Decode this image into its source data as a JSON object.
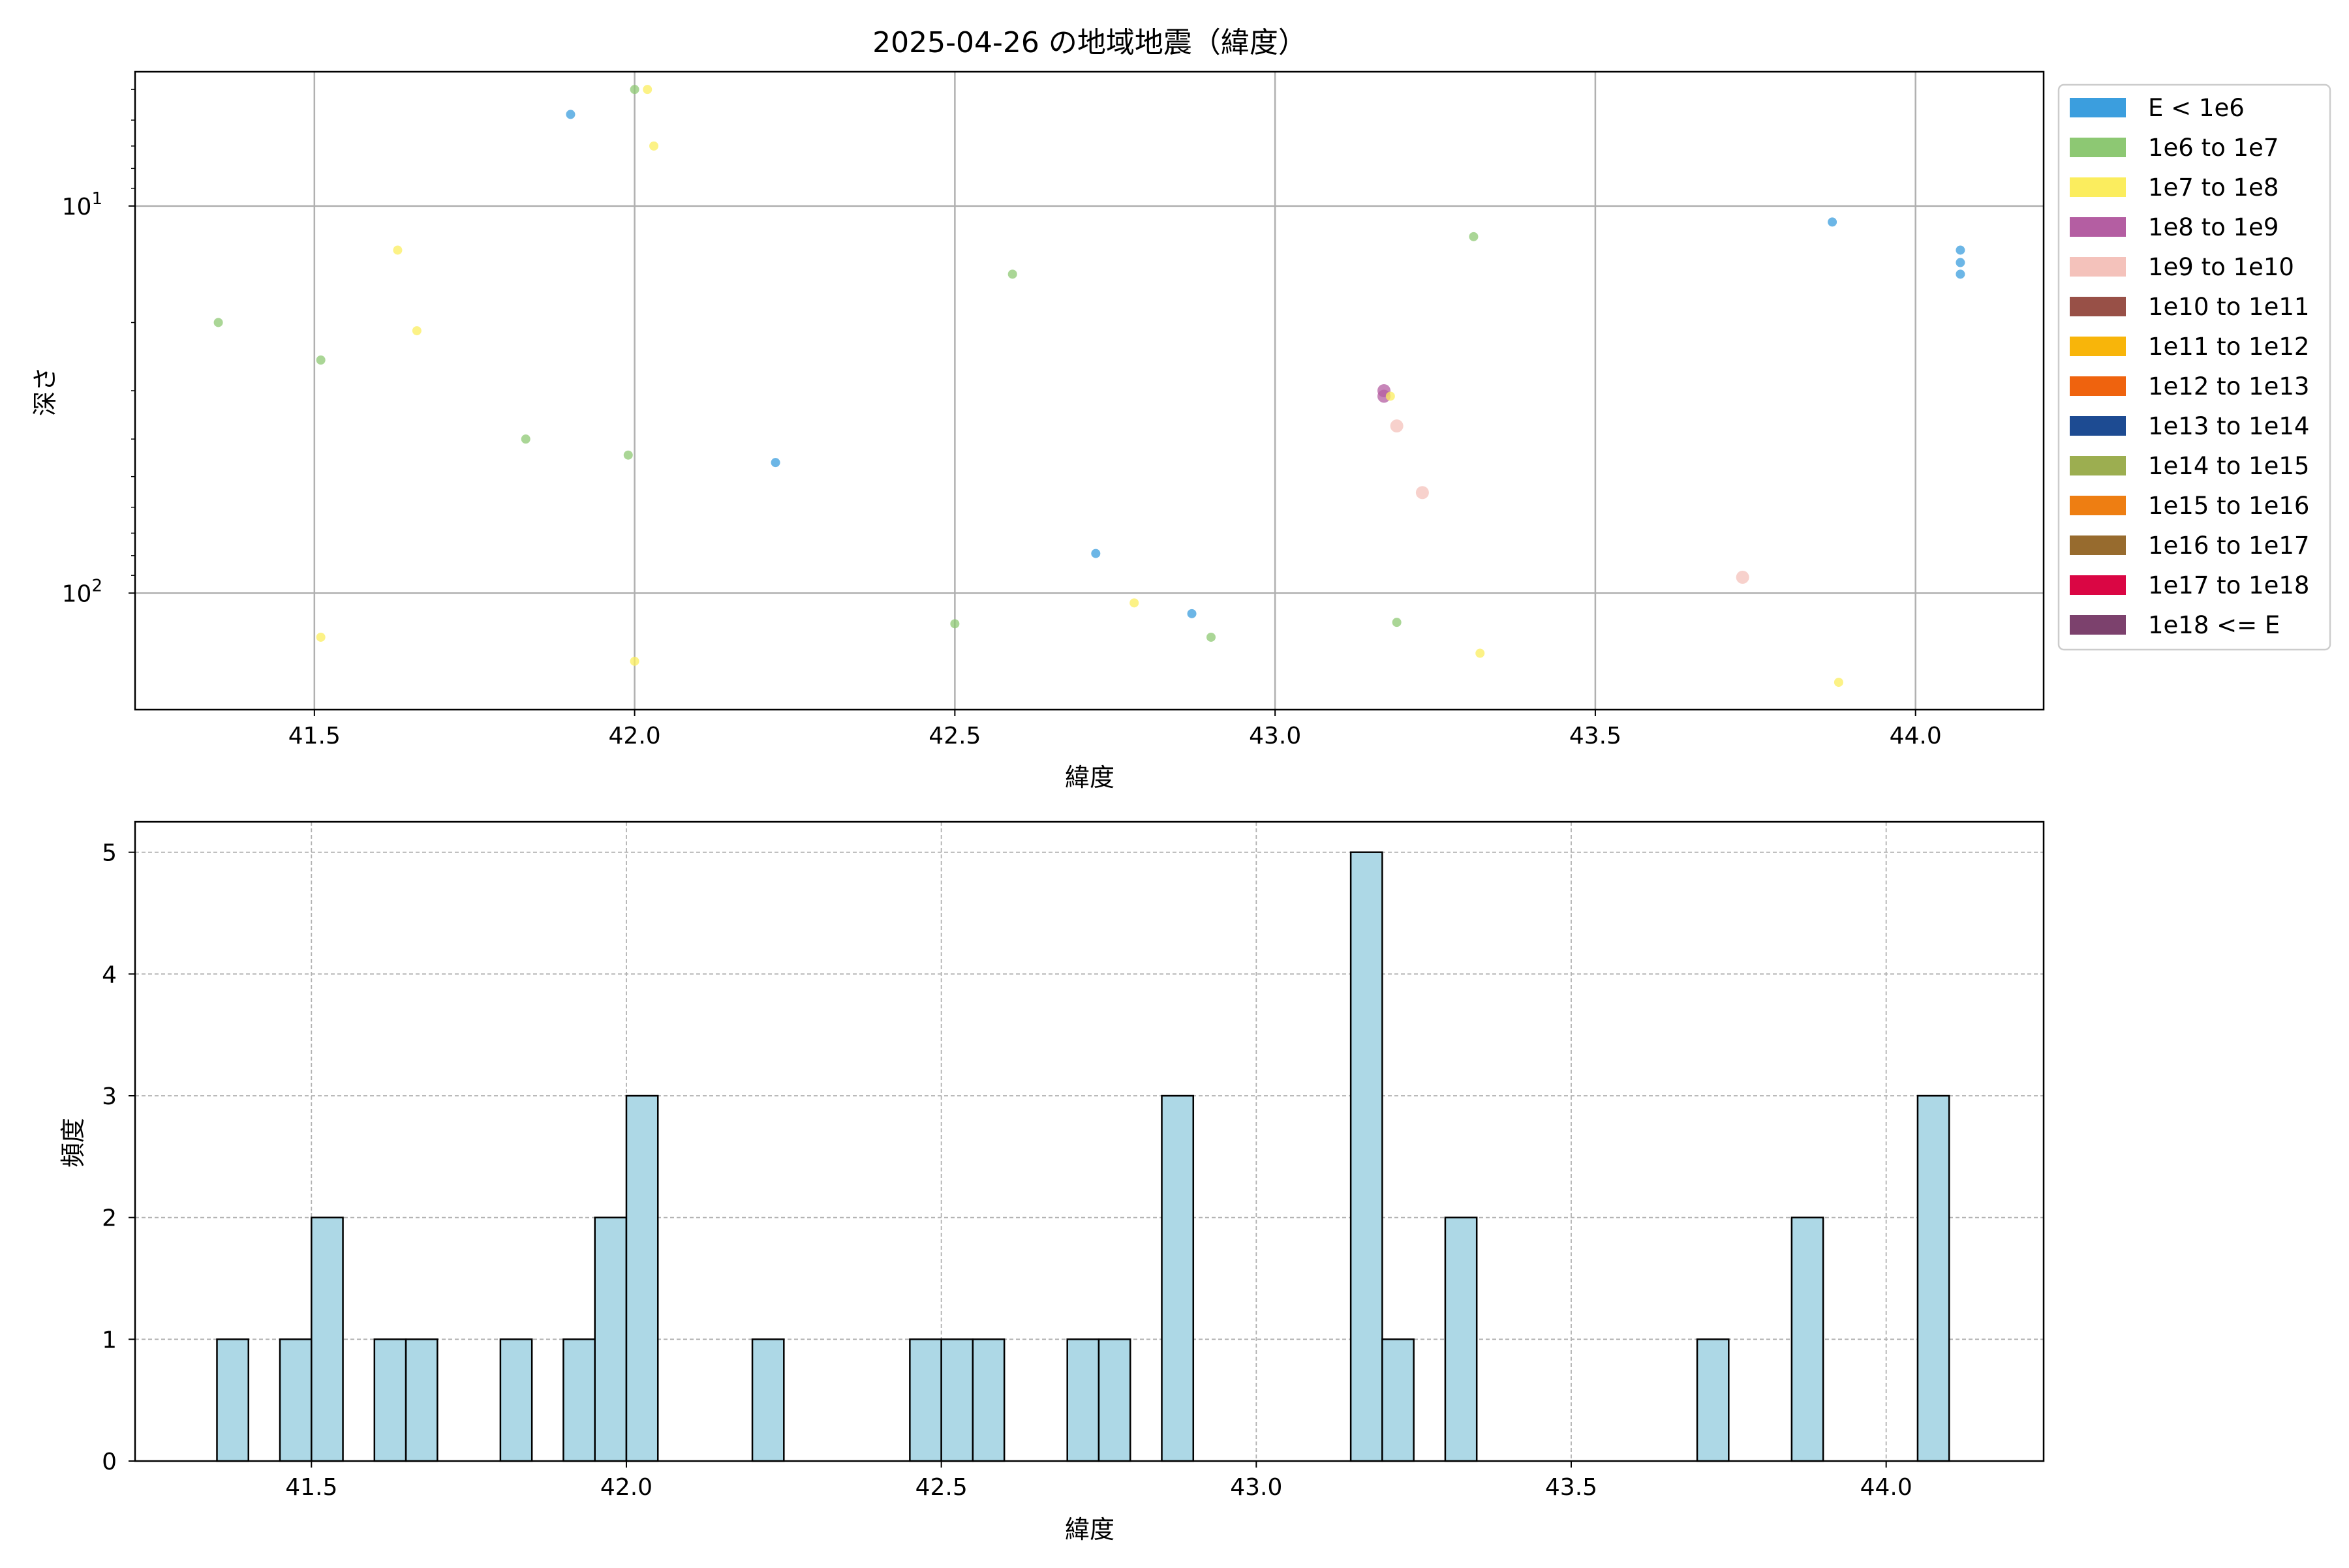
{
  "chart_data": [
    {
      "type": "scatter",
      "title": "2025-04-26 の地域地震（緯度）",
      "xlabel": "緯度",
      "ylabel": "深さ",
      "xlim": [
        41.22,
        44.2
      ],
      "ylim": [
        200,
        4.5
      ],
      "yscale": "log",
      "y_inverted": true,
      "x_ticks": [
        "41.5",
        "42.0",
        "42.5",
        "43.0",
        "43.5",
        "44.0"
      ],
      "y_ticks": [
        {
          "value": 10,
          "base": "10",
          "exp": "1"
        },
        {
          "value": 100,
          "base": "10",
          "exp": "2"
        }
      ],
      "grid": true,
      "legend_position": "outside-right",
      "legend": [
        {
          "label": "E < 1e6",
          "color": "#3b9ede"
        },
        {
          "label": "1e6 to 1e7",
          "color": "#8dc873"
        },
        {
          "label": "1e7 to 1e8",
          "color": "#fbed5e"
        },
        {
          "label": "1e8 to 1e9",
          "color": "#b45ea2"
        },
        {
          "label": "1e9 to 1e10",
          "color": "#f4c2bb"
        },
        {
          "label": "1e10 to 1e11",
          "color": "#985047"
        },
        {
          "label": "1e11 to 1e12",
          "color": "#f8b50a"
        },
        {
          "label": "1e12 to 1e13",
          "color": "#ef630e"
        },
        {
          "label": "1e13 to 1e14",
          "color": "#1d4b92"
        },
        {
          "label": "1e14 to 1e15",
          "color": "#9cae50"
        },
        {
          "label": "1e15 to 1e16",
          "color": "#ee7e12"
        },
        {
          "label": "1e16 to 1e17",
          "color": "#976b2e"
        },
        {
          "label": "1e17 to 1e18",
          "color": "#da0644"
        },
        {
          "label": "1e18 <= E",
          "color": "#7c416d"
        }
      ],
      "points": [
        {
          "x": 41.35,
          "y": 20,
          "c": 1
        },
        {
          "x": 41.51,
          "y": 25,
          "c": 1
        },
        {
          "x": 41.51,
          "y": 130,
          "c": 2
        },
        {
          "x": 41.63,
          "y": 13,
          "c": 2
        },
        {
          "x": 41.66,
          "y": 21,
          "c": 2
        },
        {
          "x": 41.83,
          "y": 40,
          "c": 1
        },
        {
          "x": 41.9,
          "y": 5.8,
          "c": 0
        },
        {
          "x": 41.99,
          "y": 44,
          "c": 1
        },
        {
          "x": 42.0,
          "y": 5.0,
          "c": 1
        },
        {
          "x": 42.0,
          "y": 150,
          "c": 2
        },
        {
          "x": 42.02,
          "y": 5.0,
          "c": 2
        },
        {
          "x": 42.03,
          "y": 7.0,
          "c": 2
        },
        {
          "x": 42.22,
          "y": 46,
          "c": 0
        },
        {
          "x": 42.5,
          "y": 120,
          "c": 1
        },
        {
          "x": 42.59,
          "y": 15,
          "c": 1
        },
        {
          "x": 42.72,
          "y": 79,
          "c": 0
        },
        {
          "x": 42.78,
          "y": 106,
          "c": 2
        },
        {
          "x": 42.87,
          "y": 113,
          "c": 0
        },
        {
          "x": 42.9,
          "y": 130,
          "c": 1
        },
        {
          "x": 43.17,
          "y": 30,
          "c": 3
        },
        {
          "x": 43.17,
          "y": 31,
          "c": 3
        },
        {
          "x": 43.18,
          "y": 31,
          "c": 2
        },
        {
          "x": 43.19,
          "y": 37,
          "c": 4
        },
        {
          "x": 43.19,
          "y": 119,
          "c": 1
        },
        {
          "x": 43.23,
          "y": 55,
          "c": 4
        },
        {
          "x": 43.31,
          "y": 12,
          "c": 1
        },
        {
          "x": 43.32,
          "y": 143,
          "c": 2
        },
        {
          "x": 43.73,
          "y": 91,
          "c": 4
        },
        {
          "x": 43.87,
          "y": 11,
          "c": 0
        },
        {
          "x": 43.88,
          "y": 170,
          "c": 2
        },
        {
          "x": 44.07,
          "y": 13,
          "c": 0
        },
        {
          "x": 44.07,
          "y": 14,
          "c": 0
        },
        {
          "x": 44.07,
          "y": 15,
          "c": 0
        }
      ]
    },
    {
      "type": "bar",
      "subtype": "histogram",
      "xlabel": "緯度",
      "ylabel": "頻度",
      "xlim": [
        41.22,
        44.25
      ],
      "ylim": [
        0,
        5.25
      ],
      "x_ticks": [
        "41.5",
        "42.0",
        "42.5",
        "43.0",
        "43.5",
        "44.0"
      ],
      "y_ticks": [
        "0",
        "1",
        "2",
        "3",
        "4",
        "5"
      ],
      "grid": true,
      "bar_color": "#add8e6",
      "bin_width": 0.05,
      "bins": [
        {
          "x0": 41.35,
          "count": 1
        },
        {
          "x0": 41.45,
          "count": 1
        },
        {
          "x0": 41.5,
          "count": 2
        },
        {
          "x0": 41.6,
          "count": 1
        },
        {
          "x0": 41.65,
          "count": 1
        },
        {
          "x0": 41.8,
          "count": 1
        },
        {
          "x0": 41.9,
          "count": 1
        },
        {
          "x0": 41.95,
          "count": 2
        },
        {
          "x0": 42.0,
          "count": 3
        },
        {
          "x0": 42.2,
          "count": 1
        },
        {
          "x0": 42.45,
          "count": 1
        },
        {
          "x0": 42.5,
          "count": 1
        },
        {
          "x0": 42.55,
          "count": 1
        },
        {
          "x0": 42.7,
          "count": 1
        },
        {
          "x0": 42.75,
          "count": 1
        },
        {
          "x0": 42.85,
          "count": 3
        },
        {
          "x0": 43.15,
          "count": 5
        },
        {
          "x0": 43.2,
          "count": 1
        },
        {
          "x0": 43.3,
          "count": 2
        },
        {
          "x0": 43.7,
          "count": 1
        },
        {
          "x0": 43.85,
          "count": 2
        },
        {
          "x0": 44.05,
          "count": 3
        }
      ]
    }
  ]
}
